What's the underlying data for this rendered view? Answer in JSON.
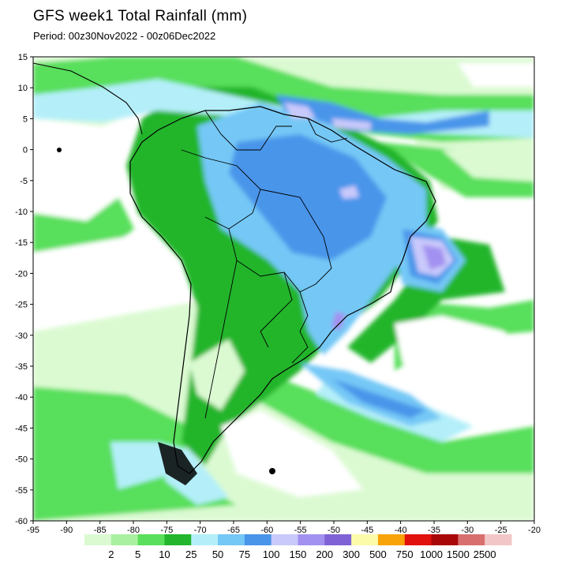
{
  "header": {
    "title": "GFS week1 Total Rainfall (mm)",
    "period": "Period: 00z30Nov2022 - 00z06Dec2022"
  },
  "map": {
    "lon_range": [
      -95,
      -20
    ],
    "lat_range": [
      -60,
      15
    ],
    "x_ticks": [
      "-95",
      "-90",
      "-85",
      "-80",
      "-75",
      "-70",
      "-65",
      "-60",
      "-55",
      "-50",
      "-45",
      "-40",
      "-35",
      "-30",
      "-25",
      "-20"
    ],
    "y_ticks": [
      "15",
      "10",
      "5",
      "0",
      "-5",
      "-10",
      "-15",
      "-20",
      "-25",
      "-30",
      "-35",
      "-40",
      "-45",
      "-50",
      "-55",
      "-60"
    ]
  },
  "colorbar": {
    "labels": [
      "2",
      "5",
      "10",
      "25",
      "50",
      "75",
      "100",
      "150",
      "200",
      "300",
      "500",
      "750",
      "1000",
      "1500",
      "2500"
    ],
    "colors": [
      "#dbfad2",
      "#a9f1a0",
      "#59df5c",
      "#23b52c",
      "#b4eff9",
      "#74c8f6",
      "#4895ea",
      "#c9c9fb",
      "#a291f0",
      "#7f62d6",
      "#fbfbaa",
      "#f9a30a",
      "#e1120e",
      "#a80808",
      "#d96e6e",
      "#f2c6c6"
    ]
  }
}
